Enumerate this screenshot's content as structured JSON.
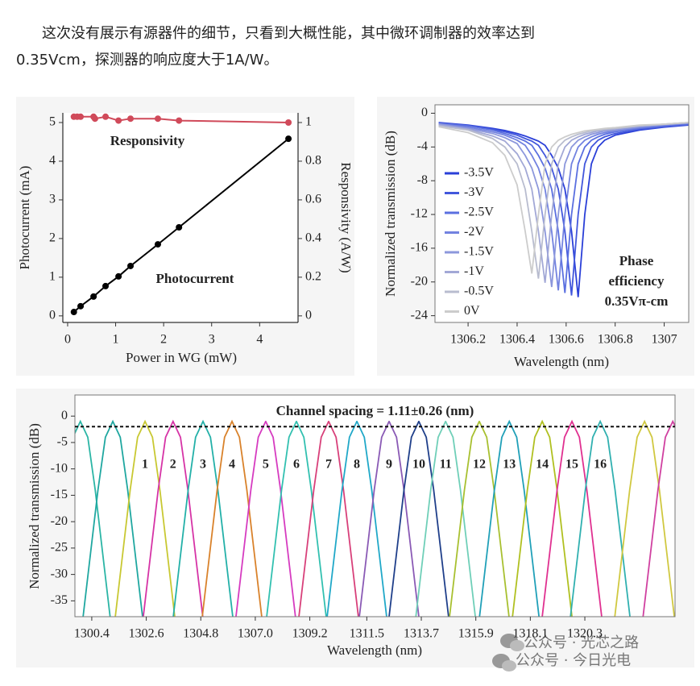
{
  "paragraph": [
    "这次没有展示有源器件的细节，只看到大概性能，其中微环调制器的效率达到",
    "0.35Vcm，探测器的响应度大于1A/W。"
  ],
  "chart_data": [
    {
      "type": "line",
      "xlabel": "Power in WG (mW)",
      "ylabel": "Photocurrent (mA)",
      "y2label": "Responsivity (A/W)",
      "xlim": [
        -0.1,
        4.8
      ],
      "xticks": [
        0,
        1,
        2,
        3,
        4
      ],
      "ylim": [
        -0.17,
        5.25
      ],
      "yticks": [
        0,
        1,
        2,
        3,
        4,
        5
      ],
      "y2lim": [
        -0.034,
        1.05
      ],
      "y2ticks": [
        0,
        0.2,
        0.4,
        0.6,
        0.8,
        1
      ],
      "markers": true,
      "series": [
        {
          "name": "Responsivity",
          "color": "#d04a5a",
          "axis": "y2",
          "x": [
            0.13,
            0.2,
            0.27,
            0.54,
            0.57,
            0.79,
            1.06,
            1.31,
            1.88,
            2.32,
            4.6
          ],
          "values": [
            1.03,
            1.03,
            1.03,
            1.03,
            1.02,
            1.03,
            1.01,
            1.02,
            1.02,
            1.01,
            1.0
          ]
        },
        {
          "name": "Photocurrent",
          "color": "#000000",
          "x": [
            0.13,
            0.27,
            0.54,
            0.79,
            1.06,
            1.31,
            1.88,
            2.32,
            4.6
          ],
          "values": [
            0.1,
            0.25,
            0.5,
            0.77,
            1.02,
            1.29,
            1.85,
            2.29,
            4.58
          ]
        }
      ]
    },
    {
      "type": "line",
      "xlabel": "Wavelength (nm)",
      "ylabel": "Normalized transmission (dB)",
      "xlim": [
        1306.065,
        1307.1
      ],
      "xticks": [
        1306.2,
        1306.4,
        1306.6,
        1306.8,
        1307
      ],
      "ylim": [
        -24.8,
        1
      ],
      "yticks": [
        0,
        -4,
        -8,
        -12,
        -16,
        -20,
        -24
      ],
      "legend": "left",
      "annotation": [
        "Phase",
        "efficiency",
        "0.35Vπ-cm"
      ],
      "x": [
        1306.08,
        1306.2,
        1306.3,
        1306.35,
        1306.4,
        1306.433,
        1306.46,
        1306.487,
        1306.514,
        1306.541,
        1306.568,
        1306.595,
        1306.622,
        1306.649,
        1306.676,
        1306.703,
        1306.73,
        1306.757,
        1306.8,
        1306.9,
        1307.0,
        1307.1
      ],
      "series": [
        {
          "name": "-3.5V",
          "color": "#2a3fd8",
          "values": [
            -1.1,
            -1.4,
            -1.8,
            -2.05,
            -2.4,
            -2.7,
            -3,
            -3.3,
            -3.8,
            -5,
            -6.5,
            -9,
            -14,
            -21.8,
            -12,
            -6,
            -4,
            -3.2,
            -2.6,
            -2,
            -1.65,
            -1.4
          ]
        },
        {
          "name": "-3V",
          "color": "#4257dc",
          "values": [
            -1.15,
            -1.45,
            -1.9,
            -2.2,
            -2.6,
            -3,
            -3.3,
            -3.8,
            -5,
            -6.5,
            -9,
            -14,
            -21.6,
            -12,
            -6,
            -4,
            -3.2,
            -2.8,
            -2.4,
            -1.9,
            -1.6,
            -1.35
          ]
        },
        {
          "name": "-2.5V",
          "color": "#5a6fe0",
          "values": [
            -1.2,
            -1.5,
            -2,
            -2.4,
            -2.9,
            -3.3,
            -3.8,
            -5,
            -6.5,
            -9,
            -14,
            -21.3,
            -12,
            -6,
            -4,
            -3.2,
            -2.8,
            -2.5,
            -2.2,
            -1.8,
            -1.5,
            -1.3
          ]
        },
        {
          "name": "-2V",
          "color": "#7282e0",
          "values": [
            -1.25,
            -1.65,
            -2.2,
            -2.6,
            -3.2,
            -3.8,
            -5,
            -6.5,
            -9,
            -14,
            -21,
            -12,
            -6,
            -4,
            -3.2,
            -2.8,
            -2.5,
            -2.3,
            -2.1,
            -1.7,
            -1.4,
            -1.2
          ]
        },
        {
          "name": "-1.5V",
          "color": "#8c97dc",
          "values": [
            -1.3,
            -1.8,
            -2.4,
            -2.9,
            -3.6,
            -5,
            -6.5,
            -9,
            -14,
            -20.6,
            -12,
            -6,
            -4,
            -3.2,
            -2.8,
            -2.5,
            -2.3,
            -2.1,
            -2,
            -1.6,
            -1.35,
            -1.15
          ]
        },
        {
          "name": "-1V",
          "color": "#a2a8d6",
          "values": [
            -1.4,
            -1.9,
            -2.7,
            -3.3,
            -4.8,
            -6.5,
            -9,
            -14,
            -20.1,
            -12,
            -6,
            -4,
            -3.2,
            -2.8,
            -2.5,
            -2.3,
            -2.1,
            -2,
            -1.85,
            -1.5,
            -1.3,
            -1.1
          ]
        },
        {
          "name": "-0.5V",
          "color": "#b8bccf",
          "values": [
            -1.5,
            -2,
            -3,
            -4,
            -6,
            -9,
            -14,
            -19.6,
            -12,
            -6,
            -4,
            -3.2,
            -2.8,
            -2.5,
            -2.3,
            -2.1,
            -2,
            -1.9,
            -1.8,
            -1.5,
            -1.3,
            -1.1
          ]
        },
        {
          "name": "0V",
          "color": "#cccccc",
          "values": [
            -1.6,
            -2.3,
            -3.5,
            -5,
            -8.5,
            -14,
            -19,
            -12,
            -6,
            -4,
            -3.2,
            -2.8,
            -2.5,
            -2.3,
            -2.1,
            -2,
            -1.9,
            -1.8,
            -1.7,
            -1.4,
            -1.3,
            -1.1
          ]
        }
      ]
    },
    {
      "type": "line",
      "title": "Channel spacing = 1.11±0.26 (nm)",
      "xlabel": "Wavelength (nm)",
      "ylabel": "Normalized transmission (dB)",
      "xlim": [
        1299.72,
        1323.94
      ],
      "xticks": [
        1300.4,
        1302.6,
        1304.8,
        {
          "value": 1307,
          "label": "1307.0"
        },
        1309.2,
        1311.5,
        1313.7,
        1315.9,
        1318.1,
        1320.3
      ],
      "ylim": [
        -38,
        4
      ],
      "yticks": [
        0,
        -5,
        -10,
        -15,
        -20,
        -25,
        -30,
        -35
      ],
      "hline": -2,
      "series": [
        {
          "color": "#2bb5a5",
          "x": [
            1298.74,
            1299.04,
            1299.34,
            1299.64,
            1299.94,
            1300.24,
            1300.54,
            1300.84,
            1301.14
          ],
          "values": [
            -38,
            -26,
            -14,
            -4,
            -1,
            -4,
            -14,
            -26,
            -38
          ]
        },
        {
          "color": "#1fa7a0",
          "x": [
            1300.05,
            1300.35,
            1300.65,
            1300.95,
            1301.25,
            1301.55,
            1301.85,
            1302.15,
            1302.45
          ],
          "values": [
            -38,
            -26,
            -14,
            -4,
            -1,
            -4,
            -14,
            -26,
            -38
          ]
        },
        {
          "color": "#c8c832",
          "label": "1",
          "x": [
            1301.35,
            1301.65,
            1301.95,
            1302.25,
            1302.55,
            1302.85,
            1303.15,
            1303.45,
            1303.75
          ],
          "values": [
            -38,
            -26,
            -14,
            -4,
            -1,
            -4,
            -14,
            -26,
            -38
          ]
        },
        {
          "color": "#d633a6",
          "label": "2",
          "x": [
            1302.48,
            1302.78,
            1303.08,
            1303.38,
            1303.68,
            1303.98,
            1304.28,
            1304.58,
            1304.88
          ],
          "values": [
            -38,
            -26,
            -14,
            -4,
            -1,
            -4,
            -14,
            -26,
            -38
          ]
        },
        {
          "color": "#23b0a8",
          "label": "3",
          "x": [
            1303.69,
            1303.99,
            1304.29,
            1304.59,
            1304.89,
            1305.19,
            1305.49,
            1305.79,
            1306.09
          ],
          "values": [
            -38,
            -26,
            -14,
            -4,
            -1,
            -4,
            -14,
            -26,
            -38
          ]
        },
        {
          "color": "#d9822b",
          "label": "4",
          "x": [
            1304.86,
            1305.16,
            1305.46,
            1305.76,
            1306.06,
            1306.36,
            1306.66,
            1306.96,
            1307.26
          ],
          "values": [
            -38,
            -26,
            -14,
            -4,
            -1,
            -4,
            -14,
            -26,
            -38
          ]
        },
        {
          "color": "#d63bc0",
          "label": "5",
          "x": [
            1306.22,
            1306.52,
            1306.82,
            1307.12,
            1307.42,
            1307.72,
            1308.02,
            1308.32,
            1308.62
          ],
          "values": [
            -38,
            -26,
            -14,
            -4,
            -1,
            -4,
            -14,
            -26,
            -38
          ]
        },
        {
          "color": "#32c0b0",
          "label": "6",
          "x": [
            1307.46,
            1307.76,
            1308.06,
            1308.36,
            1308.66,
            1308.96,
            1309.26,
            1309.56,
            1309.86
          ],
          "values": [
            -38,
            -26,
            -14,
            -4,
            -1,
            -4,
            -14,
            -26,
            -38
          ]
        },
        {
          "color": "#d8407a",
          "label": "7",
          "x": [
            1308.76,
            1309.06,
            1309.36,
            1309.66,
            1309.96,
            1310.26,
            1310.56,
            1310.86,
            1311.16
          ],
          "values": [
            -38,
            -26,
            -14,
            -4,
            -1,
            -4,
            -14,
            -26,
            -38
          ]
        },
        {
          "color": "#20a8c8",
          "label": "8",
          "x": [
            1309.9,
            1310.2,
            1310.5,
            1310.8,
            1311.1,
            1311.4,
            1311.7,
            1312,
            1312.3
          ],
          "values": [
            -38,
            -26,
            -14,
            -4,
            -1,
            -4,
            -14,
            -26,
            -38
          ]
        },
        {
          "color": "#8a5ab5",
          "label": "9",
          "x": [
            1311.2,
            1311.5,
            1311.8,
            1312.1,
            1312.4,
            1312.7,
            1313,
            1313.3,
            1313.6
          ],
          "values": [
            -38,
            -26,
            -14,
            -4,
            -1,
            -4,
            -14,
            -26,
            -38
          ]
        },
        {
          "color": "#1f3f8a",
          "label": "10",
          "x": [
            1312.4,
            1312.7,
            1313,
            1313.3,
            1313.6,
            1313.9,
            1314.2,
            1314.5,
            1314.8
          ],
          "values": [
            -38,
            -26,
            -14,
            -4,
            -1,
            -4,
            -14,
            -26,
            -38
          ]
        },
        {
          "color": "#6fcfb8",
          "label": "11",
          "x": [
            1313.48,
            1313.78,
            1314.08,
            1314.38,
            1314.68,
            1314.98,
            1315.28,
            1315.58,
            1315.88
          ],
          "values": [
            -38,
            -26,
            -14,
            -4,
            -1,
            -4,
            -14,
            -26,
            -38
          ]
        },
        {
          "color": "#a8c030",
          "label": "12",
          "x": [
            1314.84,
            1315.14,
            1315.44,
            1315.74,
            1316.04,
            1316.34,
            1316.64,
            1316.94,
            1317.24
          ],
          "values": [
            -38,
            -26,
            -14,
            -4,
            -1,
            -4,
            -14,
            -26,
            -38
          ]
        },
        {
          "color": "#20a0b8",
          "label": "13",
          "x": [
            1316.05,
            1316.35,
            1316.65,
            1316.95,
            1317.25,
            1317.55,
            1317.85,
            1318.15,
            1318.45
          ],
          "values": [
            -38,
            -26,
            -14,
            -4,
            -1,
            -4,
            -14,
            -26,
            -38
          ]
        },
        {
          "color": "#b0c020",
          "label": "14",
          "x": [
            1317.38,
            1317.68,
            1317.98,
            1318.28,
            1318.58,
            1318.88,
            1319.18,
            1319.48,
            1319.78
          ],
          "values": [
            -38,
            -26,
            -14,
            -4,
            -1,
            -4,
            -14,
            -26,
            -38
          ]
        },
        {
          "color": "#e03090",
          "label": "15",
          "x": [
            1318.58,
            1318.88,
            1319.18,
            1319.48,
            1319.78,
            1320.08,
            1320.38,
            1320.68,
            1320.98
          ],
          "values": [
            -38,
            -26,
            -14,
            -4,
            -1,
            -4,
            -14,
            -26,
            -38
          ]
        },
        {
          "color": "#30b0b0",
          "label": "16",
          "x": [
            1319.72,
            1320.02,
            1320.32,
            1320.62,
            1320.92,
            1321.22,
            1321.52,
            1321.82,
            1322.12
          ],
          "values": [
            -38,
            -26,
            -14,
            -4,
            -1,
            -4,
            -14,
            -26,
            -38
          ]
        },
        {
          "color": "#d0c840",
          "x": [
            1321.51,
            1321.81,
            1322.11,
            1322.41,
            1322.71,
            1323.01,
            1323.31,
            1323.61,
            1323.91
          ],
          "values": [
            -38,
            -26,
            -14,
            -4,
            -1,
            -4,
            -14,
            -26,
            -38
          ]
        },
        {
          "color": "#d040a0",
          "x": [
            1322.65,
            1322.95,
            1323.25,
            1323.55,
            1323.85,
            1324.15,
            1324.45,
            1324.75,
            1325.05
          ],
          "values": [
            -38,
            -26,
            -14,
            -4,
            -1,
            -4,
            -14,
            -26,
            -38
          ]
        }
      ]
    }
  ],
  "watermark": [
    "公众号 · 光芯之路",
    "公众号 · 今日光电"
  ]
}
